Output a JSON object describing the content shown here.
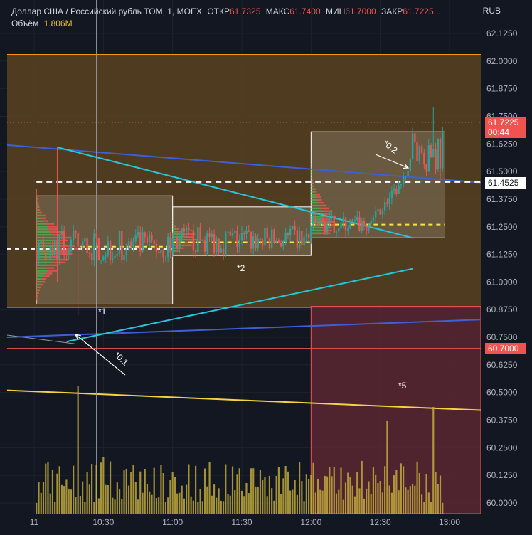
{
  "header": {
    "title": "Доллар США / Российский рубль TOM, 1, MOEX",
    "open_label": "ОТКР",
    "open": "61.7325",
    "high_label": "МАКС",
    "high": "61.7400",
    "low_label": "МИН",
    "low": "61.7000",
    "close_label": "ЗАКР",
    "close": "61.7225...",
    "volume_label": "Объём",
    "volume": "1.806M",
    "currency": "RUB"
  },
  "price_tags": {
    "last_price": "61.7225",
    "countdown": "00:44",
    "level": "61.4525",
    "low_level": "60.7000"
  },
  "annotations": {
    "box1": "*1",
    "box2": "*2",
    "arrow1": "*0.1",
    "arrow2": "*0.2",
    "zone5": "*5"
  },
  "colors": {
    "up": "#26a69a",
    "down": "#ef5350",
    "volume": "#c9b23d",
    "zone_fill": "#5a4220",
    "zone_border": "#f7931a",
    "trend_blue": "#3f5fd9",
    "trend_cyan": "#26c6da",
    "trend_yellow": "#f5d442",
    "red_zone": "#5a2730"
  },
  "chart_data": {
    "type": "candlestick",
    "ylim": [
      60.0,
      62.18
    ],
    "y_ticks": [
      "62.1250",
      "62.0000",
      "61.8750",
      "61.7500",
      "61.6250",
      "61.5000",
      "61.3750",
      "61.2500",
      "61.1250",
      "61.0000",
      "60.8750",
      "60.7500",
      "60.6250",
      "60.5000",
      "60.3750",
      "60.2500",
      "60.1250",
      "60.0000"
    ],
    "x_ticks": [
      "11",
      "10:30",
      "11:00",
      "11:30",
      "12:00",
      "12:30",
      "13:00"
    ],
    "x_tick_minutes": [
      0,
      30,
      60,
      90,
      120,
      150,
      180
    ],
    "time_range_minutes": [
      -10,
      192
    ],
    "horizontal_levels": {
      "zone_top": 62.03,
      "zone_bottom": 60.885,
      "dashed_white": 61.4525,
      "red_line": 60.7,
      "red_zone_top": 60.89
    },
    "segments": [
      {
        "start": 1,
        "end": 60,
        "low": 61.1,
        "high": 61.28,
        "mid": 61.16
      },
      {
        "start": 60,
        "end": 120,
        "low": 61.12,
        "high": 61.28,
        "mid": 61.19
      },
      {
        "start": 120,
        "end": 145,
        "low": 61.22,
        "high": 61.32,
        "mid": 61.26
      },
      {
        "start": 145,
        "end": 162,
        "low": 61.26,
        "high": 61.48,
        "mid": 61.38
      },
      {
        "start": 162,
        "end": 178,
        "low": 61.45,
        "high": 61.72,
        "mid": 61.6
      }
    ],
    "volume_bars": {
      "max_label": "1.806M"
    }
  }
}
